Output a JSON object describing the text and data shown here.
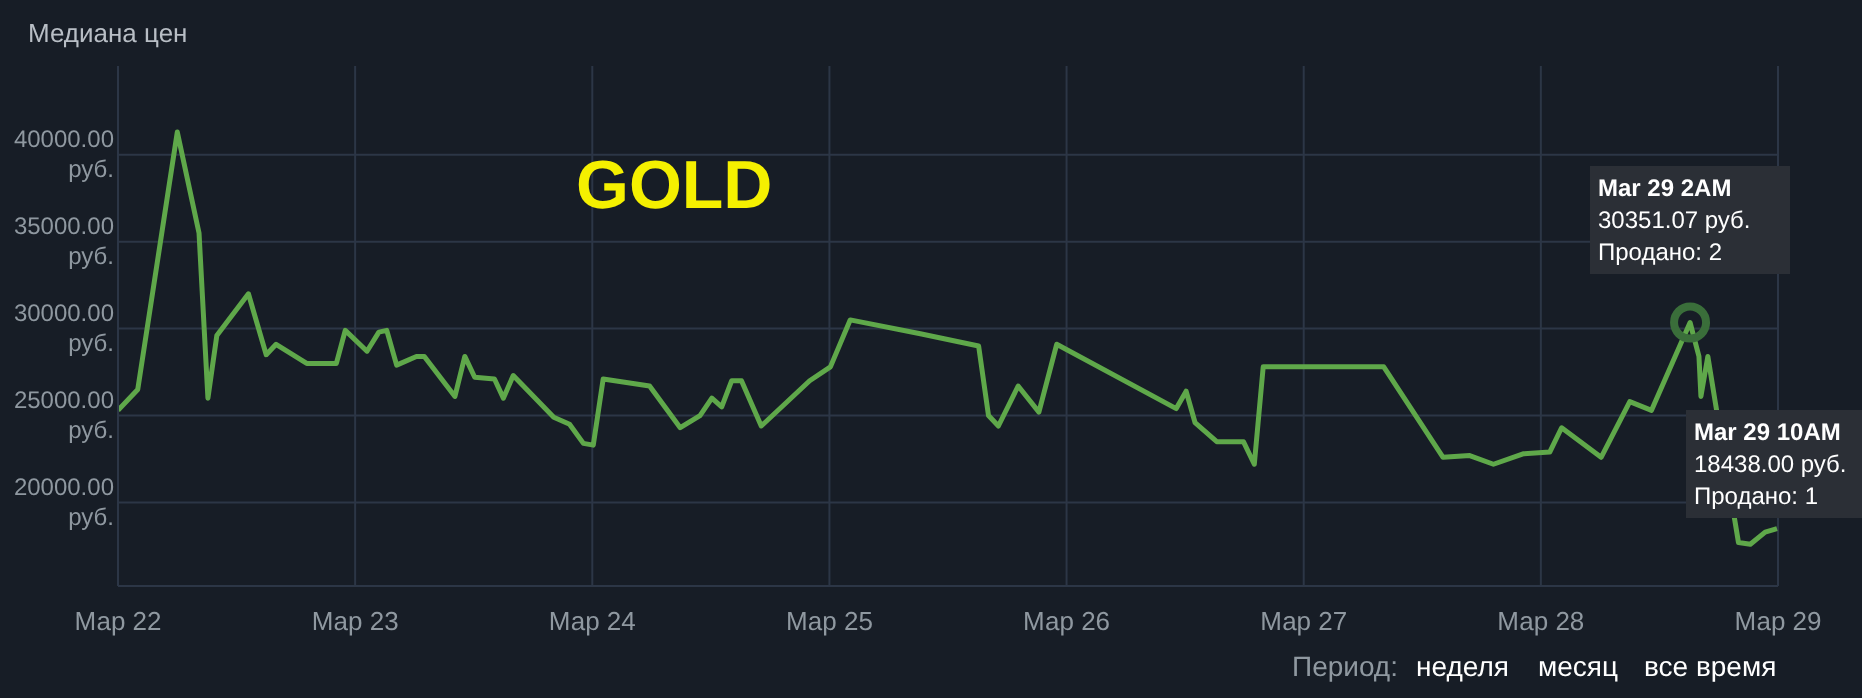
{
  "chart_data": {
    "type": "line",
    "title": "Медиана цен",
    "x": [
      "--03-22T00:00",
      "--03-22T02:00",
      "--03-22T06:00",
      "--03-22T08:12",
      "--03-22T09:06",
      "--03-22T10:00",
      "--03-22T13:12",
      "--03-22T15:00",
      "--03-22T16:00",
      "--03-22T19:06",
      "--03-22T22:06",
      "--03-22T23:00",
      "--03-23T01:12",
      "--03-23T02:24",
      "--03-23T03:12",
      "--03-23T04:12",
      "--03-23T06:12",
      "--03-23T07:00",
      "--03-23T10:06",
      "--03-23T11:06",
      "--03-23T12:06",
      "--03-23T14:06",
      "--03-23T15:00",
      "--03-23T16:00",
      "--03-23T20:06",
      "--03-23T21:42",
      "--03-23T23:06",
      "--03-24T00:06",
      "--03-24T01:06",
      "--03-24T05:48",
      "--03-24T08:54",
      "--03-24T10:54",
      "--03-24T12:06",
      "--03-24T13:06",
      "--03-24T14:06",
      "--03-24T15:06",
      "--03-24T17:06",
      "--03-24T22:00",
      "--03-25T00:06",
      "--03-25T02:06",
      "--03-25T09:12",
      "--03-25T15:06",
      "--03-25T16:06",
      "--03-25T17:06",
      "--03-25T19:06",
      "--03-25T21:12",
      "--03-25T23:00",
      "--03-26T11:06",
      "--03-26T12:06",
      "--03-26T13:00",
      "--03-26T15:12",
      "--03-26T17:54",
      "--03-26T19:00",
      "--03-26T19:54",
      "--03-27T08:06",
      "--03-27T14:06",
      "--03-27T16:48",
      "--03-27T19:12",
      "--03-27T22:12",
      "--03-28T00:54",
      "--03-28T02:06",
      "--03-28T06:06",
      "--03-28T09:00",
      "--03-28T11:12",
      "--03-28T15:06",
      "--03-28T16:00",
      "--03-28T16:12",
      "--03-28T16:54",
      "--03-28T17:42",
      "--03-28T20:00",
      "--03-28T21:12",
      "--03-28T22:42",
      "--03-28T23:54"
    ],
    "series": [
      {
        "color": "#5fa84a",
        "values": [
          25300,
          26500,
          41300,
          35500,
          26000,
          29600,
          32000,
          28500,
          29100,
          28000,
          28000,
          29900,
          28700,
          29800,
          29900,
          27900,
          28400,
          28400,
          26100,
          28400,
          27200,
          27100,
          26000,
          27300,
          24900,
          24500,
          23400,
          23300,
          27100,
          26700,
          24300,
          25000,
          26000,
          25500,
          27000,
          27000,
          24400,
          27000,
          27800,
          30500,
          29700,
          29000,
          25000,
          24400,
          26700,
          25200,
          29100,
          25400,
          26400,
          24600,
          23500,
          23500,
          22200,
          27800,
          27800,
          22600,
          22700,
          22200,
          22800,
          22900,
          24300,
          22600,
          25800,
          25300,
          30351.07,
          28400,
          26100,
          28400,
          25600,
          17700,
          17600,
          18300,
          18500
        ]
      }
    ],
    "xlim": [
      "--03-22",
      "--03-29"
    ],
    "xticks": [
      {
        "value": "--03-22",
        "label": "Мар 22"
      },
      {
        "value": "--03-23",
        "label": "Мар 23"
      },
      {
        "value": "--03-24",
        "label": "Мар 24"
      },
      {
        "value": "--03-25",
        "label": "Мар 25"
      },
      {
        "value": "--03-26",
        "label": "Мар 26"
      },
      {
        "value": "--03-27",
        "label": "Мар 27"
      },
      {
        "value": "--03-28",
        "label": "Мар 28"
      },
      {
        "value": "--03-29",
        "label": "Мар 29"
      }
    ],
    "ylim": [
      15200,
      45100
    ],
    "yticks": [
      {
        "value": 20000,
        "label": "20000.00 руб."
      },
      {
        "value": 25000,
        "label": "25000.00 руб."
      },
      {
        "value": 30000,
        "label": "30000.00 руб."
      },
      {
        "value": 35000,
        "label": "35000.00 руб."
      },
      {
        "value": 40000,
        "label": "40000.00 руб."
      }
    ],
    "grid": true,
    "legend": false,
    "marker": "none",
    "line_style": "solid",
    "annotations": [
      "GOLD",
      {
        "text": "Mar 29 2AM\n30351.07 руб.\nПродано: 2",
        "x": "--03-28T15:06",
        "y": 30351.07
      },
      "Mar 29 10AM\n18438.00 руб.\nПродано: 1",
      "Период:",
      "неделя",
      "месяц",
      "все время"
    ]
  }
}
